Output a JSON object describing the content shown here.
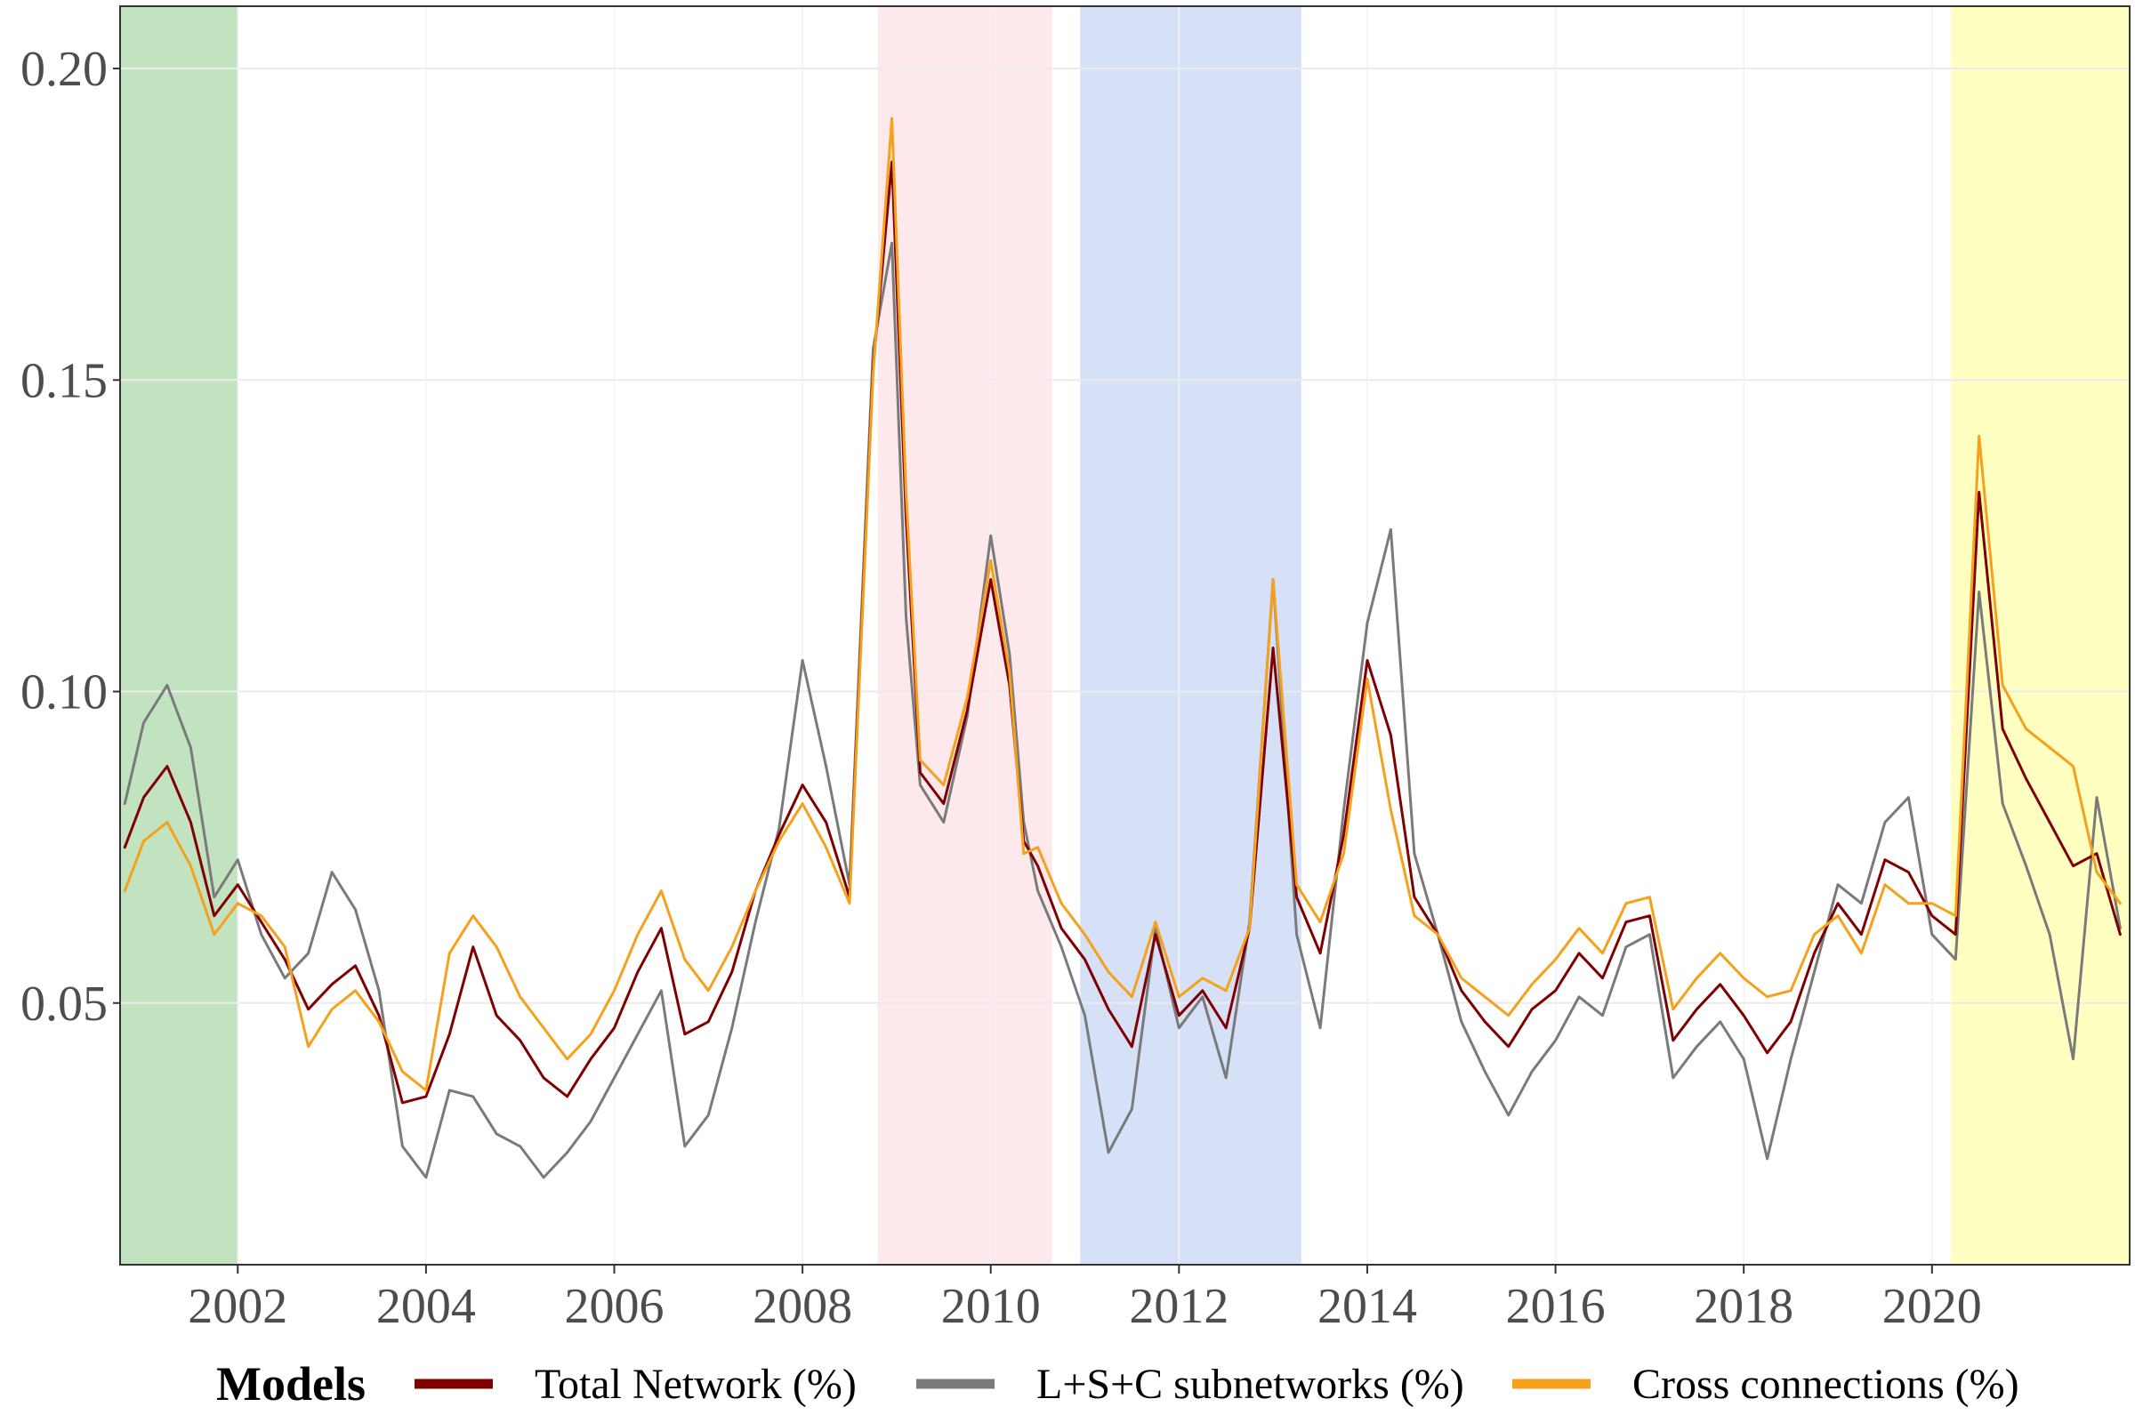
{
  "chart_data": {
    "type": "line",
    "title": "",
    "xlabel": "",
    "ylabel": "",
    "xlim": [
      2000.75,
      2022.1
    ],
    "ylim": [
      0.008,
      0.21
    ],
    "grid": true,
    "x_ticks": [
      2002,
      2004,
      2006,
      2008,
      2010,
      2012,
      2014,
      2016,
      2018,
      2020
    ],
    "x_tick_labels": [
      "2002",
      "2004",
      "2006",
      "2008",
      "2010",
      "2012",
      "2014",
      "2016",
      "2018",
      "2020"
    ],
    "y_ticks": [
      0.05,
      0.1,
      0.15,
      0.2
    ],
    "y_tick_labels": [
      "0.05",
      "0.10",
      "0.15",
      "0.20"
    ],
    "shaded_periods": [
      {
        "start": 2000.75,
        "end": 2002.0,
        "color": "#c2e3c0"
      },
      {
        "start": 2008.8,
        "end": 2010.65,
        "color": "#fde9ec"
      },
      {
        "start": 2010.95,
        "end": 2013.3,
        "color": "#d6e1f7"
      },
      {
        "start": 2020.2,
        "end": 2022.1,
        "color": "#ffffc2"
      }
    ],
    "legend": {
      "title": "Models",
      "position": "bottom",
      "entries": [
        "Total Network (%)",
        "L+S+C subnetworks (%)",
        "Cross connections (%)"
      ]
    },
    "x": [
      2000.8,
      2001.0,
      2001.25,
      2001.5,
      2001.75,
      2002.0,
      2002.25,
      2002.5,
      2002.75,
      2003.0,
      2003.25,
      2003.5,
      2003.75,
      2004.0,
      2004.25,
      2004.5,
      2004.75,
      2005.0,
      2005.25,
      2005.5,
      2005.75,
      2006.0,
      2006.25,
      2006.5,
      2006.75,
      2007.0,
      2007.25,
      2007.5,
      2007.75,
      2008.0,
      2008.25,
      2008.5,
      2008.75,
      2008.95,
      2009.1,
      2009.25,
      2009.5,
      2009.75,
      2010.0,
      2010.2,
      2010.35,
      2010.5,
      2010.75,
      2011.0,
      2011.25,
      2011.5,
      2011.75,
      2012.0,
      2012.25,
      2012.5,
      2012.75,
      2013.0,
      2013.25,
      2013.5,
      2013.75,
      2014.0,
      2014.25,
      2014.5,
      2014.75,
      2015.0,
      2015.25,
      2015.5,
      2015.75,
      2016.0,
      2016.25,
      2016.5,
      2016.75,
      2017.0,
      2017.25,
      2017.5,
      2017.75,
      2018.0,
      2018.25,
      2018.5,
      2018.75,
      2019.0,
      2019.25,
      2019.5,
      2019.75,
      2020.0,
      2020.25,
      2020.5,
      2020.75,
      2021.0,
      2021.25,
      2021.5,
      2021.75,
      2022.0
    ],
    "series": [
      {
        "name": "Total Network (%)",
        "color": "#7f0000",
        "values": [
          0.075,
          0.083,
          0.088,
          0.079,
          0.064,
          0.069,
          0.063,
          0.057,
          0.049,
          0.053,
          0.056,
          0.048,
          0.034,
          0.035,
          0.045,
          0.059,
          0.048,
          0.044,
          0.038,
          0.035,
          0.041,
          0.046,
          0.055,
          0.062,
          0.045,
          0.047,
          0.055,
          0.068,
          0.077,
          0.085,
          0.079,
          0.067,
          0.152,
          0.185,
          0.128,
          0.087,
          0.082,
          0.097,
          0.118,
          0.101,
          0.076,
          0.072,
          0.062,
          0.057,
          0.049,
          0.043,
          0.061,
          0.048,
          0.052,
          0.046,
          0.062,
          0.107,
          0.067,
          0.058,
          0.077,
          0.105,
          0.093,
          0.067,
          0.061,
          0.052,
          0.047,
          0.043,
          0.049,
          0.052,
          0.058,
          0.054,
          0.063,
          0.064,
          0.044,
          0.049,
          0.053,
          0.048,
          0.042,
          0.047,
          0.058,
          0.066,
          0.061,
          0.073,
          0.071,
          0.064,
          0.061,
          0.132,
          0.094,
          0.086,
          0.079,
          0.072,
          0.074,
          0.061
        ]
      },
      {
        "name": "L+S+C subnetworks (%)",
        "color": "#7a7a7a",
        "values": [
          0.082,
          0.095,
          0.101,
          0.091,
          0.067,
          0.073,
          0.061,
          0.054,
          0.058,
          0.071,
          0.065,
          0.052,
          0.027,
          0.022,
          0.036,
          0.035,
          0.029,
          0.027,
          0.022,
          0.026,
          0.031,
          0.038,
          0.045,
          0.052,
          0.027,
          0.032,
          0.046,
          0.063,
          0.078,
          0.105,
          0.088,
          0.069,
          0.155,
          0.172,
          0.112,
          0.085,
          0.079,
          0.096,
          0.125,
          0.106,
          0.079,
          0.068,
          0.059,
          0.048,
          0.026,
          0.033,
          0.062,
          0.046,
          0.051,
          0.038,
          0.063,
          0.118,
          0.061,
          0.046,
          0.081,
          0.111,
          0.126,
          0.074,
          0.061,
          0.047,
          0.039,
          0.032,
          0.039,
          0.044,
          0.051,
          0.048,
          0.059,
          0.061,
          0.038,
          0.043,
          0.047,
          0.041,
          0.025,
          0.041,
          0.055,
          0.069,
          0.066,
          0.079,
          0.083,
          0.061,
          0.057,
          0.116,
          0.082,
          0.072,
          0.061,
          0.041,
          0.083,
          0.062
        ]
      },
      {
        "name": "Cross connections (%)",
        "color": "#f5a11c",
        "values": [
          0.068,
          0.076,
          0.079,
          0.072,
          0.061,
          0.066,
          0.064,
          0.059,
          0.043,
          0.049,
          0.052,
          0.047,
          0.039,
          0.036,
          0.058,
          0.064,
          0.059,
          0.051,
          0.046,
          0.041,
          0.045,
          0.052,
          0.061,
          0.068,
          0.057,
          0.052,
          0.059,
          0.068,
          0.076,
          0.082,
          0.075,
          0.066,
          0.151,
          0.192,
          0.132,
          0.089,
          0.085,
          0.099,
          0.121,
          0.103,
          0.074,
          0.075,
          0.066,
          0.061,
          0.055,
          0.051,
          0.063,
          0.051,
          0.054,
          0.052,
          0.062,
          0.118,
          0.069,
          0.063,
          0.074,
          0.102,
          0.081,
          0.064,
          0.061,
          0.054,
          0.051,
          0.048,
          0.053,
          0.057,
          0.062,
          0.058,
          0.066,
          0.067,
          0.049,
          0.054,
          0.058,
          0.054,
          0.051,
          0.052,
          0.061,
          0.064,
          0.058,
          0.069,
          0.066,
          0.066,
          0.064,
          0.141,
          0.101,
          0.094,
          0.091,
          0.088,
          0.071,
          0.066
        ]
      }
    ]
  }
}
